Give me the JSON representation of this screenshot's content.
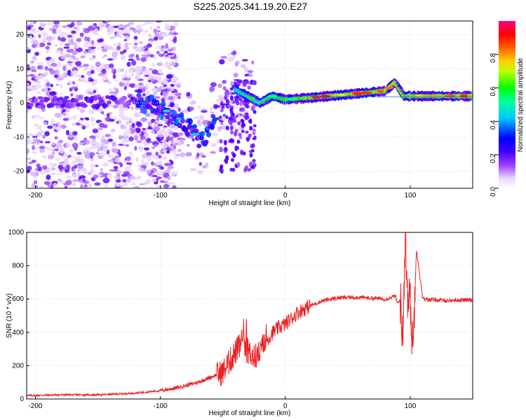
{
  "title": "S225.2025.341.19.20.E27",
  "chart_data": [
    {
      "type": "heatmap",
      "xlabel": "Height of straight line (km)",
      "ylabel": "Frequency (Hz)",
      "xlim": [
        -207,
        150
      ],
      "ylim": [
        -25,
        24
      ],
      "xticks": [
        -200,
        -100,
        0,
        100
      ],
      "yticks": [
        20,
        10,
        0,
        -10,
        -20
      ],
      "colorbar": {
        "label": "Normalized spectral amplitude",
        "range": [
          0,
          1
        ],
        "ticks": [
          "0.0",
          "0.2",
          "0.4",
          "0.6",
          "0.8"
        ],
        "tick_values": [
          0.0,
          0.2,
          0.4,
          0.6,
          0.8
        ],
        "colors": [
          "#e8d8ff",
          "#8000ff",
          "#0000ff",
          "#00ffff",
          "#00ff00",
          "#ffff00",
          "#ff8000",
          "#ff0000",
          "#ff0080"
        ]
      },
      "ridge": [
        {
          "x": -207,
          "f": 0.0
        },
        {
          "x": -120,
          "f": 0.5
        },
        {
          "x": -110,
          "f": -0.5
        },
        {
          "x": -90,
          "f": -3
        },
        {
          "x": -75,
          "f": -8
        },
        {
          "x": -65,
          "f": -12
        },
        {
          "x": -50,
          "f": 3
        },
        {
          "x": -40,
          "f": 4
        },
        {
          "x": -30,
          "f": 2
        },
        {
          "x": -20,
          "f": 0
        },
        {
          "x": -10,
          "f": 2
        },
        {
          "x": 0,
          "f": 1
        },
        {
          "x": 20,
          "f": 1.5
        },
        {
          "x": 50,
          "f": 2.5
        },
        {
          "x": 80,
          "f": 3.5
        },
        {
          "x": 88,
          "f": 6
        },
        {
          "x": 95,
          "f": 2
        },
        {
          "x": 150,
          "f": 2
        }
      ]
    },
    {
      "type": "line",
      "xlabel": "Height of straight line (km)",
      "ylabel": "SNR (10 * v/v)",
      "xlim": [
        -207,
        150
      ],
      "ylim": [
        0,
        1000
      ],
      "xticks": [
        -200,
        -100,
        0,
        100
      ],
      "yticks": [
        0,
        200,
        400,
        600,
        800,
        1000
      ],
      "color": "#ee2020",
      "series": [
        {
          "name": "SNR",
          "x": [
            -207,
            -180,
            -150,
            -120,
            -100,
            -85,
            -70,
            -60,
            -50,
            -45,
            -40,
            -35,
            -30,
            -25,
            -20,
            -15,
            -10,
            -5,
            0,
            10,
            20,
            30,
            40,
            50,
            60,
            70,
            80,
            85,
            88,
            90,
            92,
            94,
            96,
            98,
            100,
            102,
            105,
            110,
            120,
            130,
            140,
            150
          ],
          "values": [
            20,
            25,
            25,
            35,
            50,
            70,
            100,
            130,
            160,
            220,
            280,
            330,
            290,
            250,
            280,
            350,
            400,
            430,
            450,
            520,
            560,
            590,
            605,
            610,
            610,
            605,
            600,
            610,
            620,
            570,
            600,
            370,
            980,
            580,
            600,
            300,
            900,
            600,
            595,
            590,
            595,
            595
          ]
        }
      ]
    }
  ]
}
